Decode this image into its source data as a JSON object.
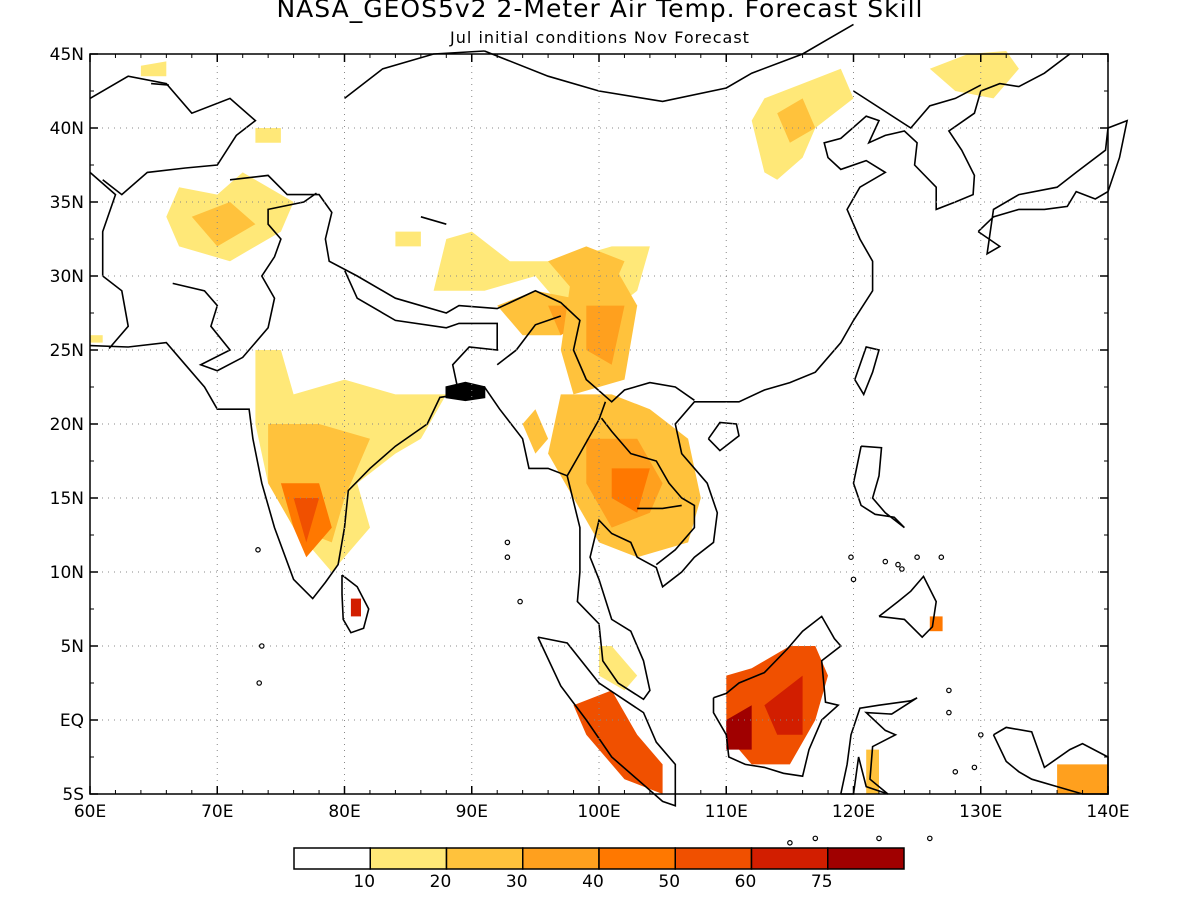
{
  "title": "NASA_GEOS5v2 2-Meter Air Temp. Forecast Skill",
  "subtitle": "Jul initial conditions  Nov Forecast",
  "map": {
    "lon_labels": [
      "60E",
      "70E",
      "80E",
      "90E",
      "100E",
      "110E",
      "120E",
      "130E",
      "140E"
    ],
    "lat_labels": [
      "45N",
      "40N",
      "35N",
      "30N",
      "25N",
      "20N",
      "15N",
      "10N",
      "5N",
      "EQ",
      "5S"
    ],
    "lon_range": [
      60,
      140
    ],
    "lat_range": [
      -5,
      45
    ],
    "gridlines": "dotted"
  },
  "colorbar": {
    "colors": [
      "#ffffff",
      "#ffe878",
      "#ffc23c",
      "#ffa01e",
      "#ff7800",
      "#f05000",
      "#d21e00",
      "#a00000"
    ],
    "labels": [
      "10",
      "20",
      "30",
      "40",
      "50",
      "60",
      "75"
    ]
  }
}
